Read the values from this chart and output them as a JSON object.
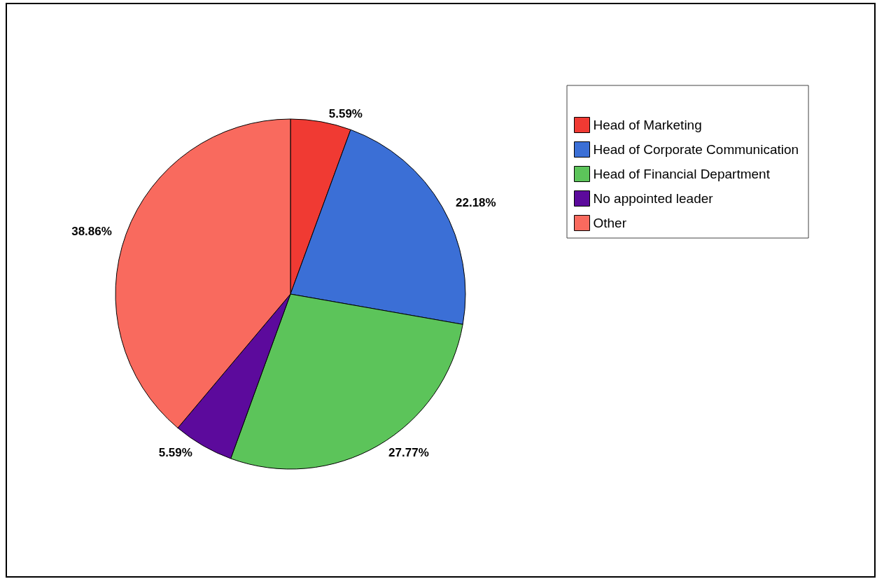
{
  "chart_data": {
    "type": "pie",
    "categories": [
      "Head of Marketing",
      "Head of Corporate Communication",
      "Head of Financial Department",
      "No appointed leader",
      "Other"
    ],
    "values": [
      5.59,
      22.18,
      27.77,
      5.59,
      38.86
    ],
    "colors": [
      "#f03a33",
      "#3b6fd6",
      "#5cc45a",
      "#5c0a9c",
      "#f96a5e"
    ],
    "value_labels": [
      "5.59%",
      "22.18%",
      "27.77%",
      "5.59%",
      "38.86%"
    ],
    "legend": "top right"
  }
}
